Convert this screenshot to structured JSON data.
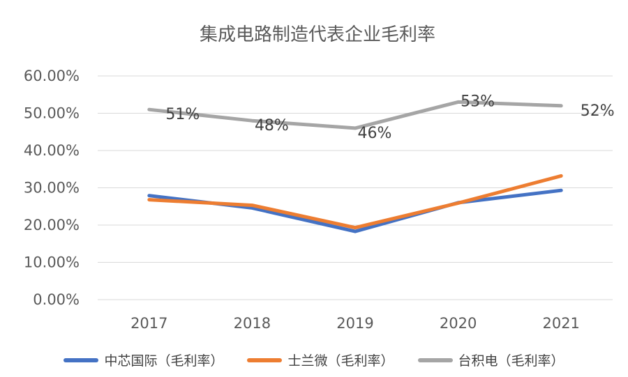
{
  "chart_data": {
    "type": "line",
    "title": "集成电路制造代表企业毛利率",
    "categories": [
      "2017",
      "2018",
      "2019",
      "2020",
      "2021"
    ],
    "y_ticks": [
      "0.00%",
      "10.00%",
      "20.00%",
      "30.00%",
      "40.00%",
      "50.00%",
      "60.00%"
    ],
    "ylim": [
      0,
      60
    ],
    "grid": true,
    "legend_position": "bottom",
    "series": [
      {
        "name": "中芯国际（毛利率）",
        "color": "#4472C4",
        "values": [
          27.9,
          24.6,
          18.3,
          26.0,
          29.3
        ],
        "labels": null
      },
      {
        "name": "士兰微（毛利率）",
        "color": "#ED7D31",
        "values": [
          26.8,
          25.3,
          19.3,
          25.9,
          33.2
        ],
        "labels": null
      },
      {
        "name": "台积电（毛利率）",
        "color": "#A5A5A5",
        "values": [
          51,
          48,
          46,
          53,
          52
        ],
        "labels": [
          "51%",
          "48%",
          "46%",
          "53%",
          "52%"
        ]
      }
    ]
  }
}
